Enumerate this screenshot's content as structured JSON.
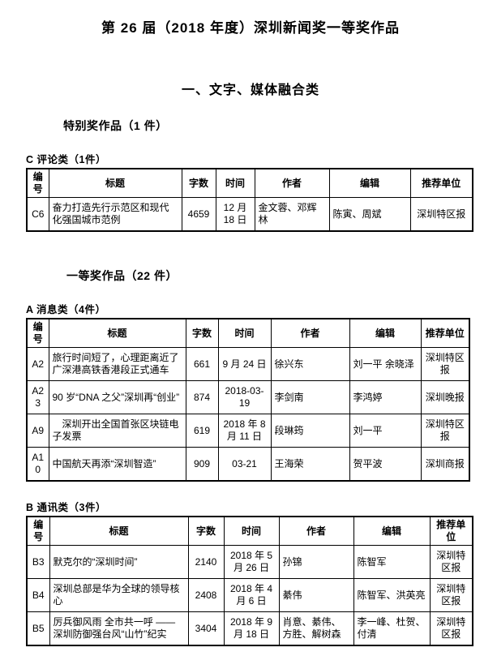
{
  "doc": {
    "main_title": "第 26 届（2018 年度）深圳新闻奖一等奖作品",
    "category_title": "一、文字、媒体融合类"
  },
  "table_headers": [
    "编号",
    "标题",
    "字数",
    "时间",
    "作者",
    "编辑",
    "推荐单位"
  ],
  "special_section": {
    "heading": "特别奖作品（1 件）",
    "table_c": {
      "caption": "C 评论类（1件）",
      "rows": [
        {
          "no": "C6",
          "title": "奋力打造先行示范区和现代化强国城市范例",
          "words": "4659",
          "time": "12 月 18 日",
          "authors": "金文蓉、邓辉林",
          "editors": "陈寅、周斌",
          "org": "深圳特区报"
        }
      ]
    }
  },
  "first_prize_section": {
    "heading": "一等奖作品（22 件）",
    "table_a": {
      "caption": "A 消息类（4件）",
      "rows": [
        {
          "no": "A2",
          "title": "旅行时间短了，心理距离近了 广深港高铁香港段正式通车",
          "words": "661",
          "time": "9 月 24 日",
          "authors": "徐兴东",
          "editors": "刘一平 余晓泽",
          "org": "深圳特区报"
        },
        {
          "no": "A23",
          "title": "90 岁“DNA 之父”深圳再“创业”",
          "words": "874",
          "time": "2018-03-19",
          "authors": "李剑南",
          "editors": "李鸿婷",
          "org": "深圳晚报"
        },
        {
          "no": "A9",
          "title": "　深圳开出全国首张区块链电子发票",
          "words": "619",
          "time": "2018 年 8 月 11 日",
          "authors": "段琳筠",
          "editors": "刘一平",
          "org": "深圳特区报"
        },
        {
          "no": "A10",
          "title": "中国航天再添“深圳智造”",
          "words": "909",
          "time": "03-21",
          "authors": "王海荣",
          "editors": "贺平波",
          "org": "深圳商报"
        }
      ]
    },
    "table_b": {
      "caption": "B 通讯类（3件）",
      "rows": [
        {
          "no": "B3",
          "title": "默克尔的“深圳时间”",
          "words": "2140",
          "time": "2018 年 5 月 26 日",
          "authors": "孙锦",
          "editors": "陈智军",
          "org": "深圳特区报"
        },
        {
          "no": "B4",
          "title": "深圳总部是华为全球的领导核心",
          "words": "2408",
          "time": "2018 年 4 月 6 日",
          "authors": "綦伟",
          "editors": "陈智军、洪英亮",
          "org": "深圳特区报"
        },
        {
          "no": "B5",
          "title": "厉兵御风雨 全市共一呼 ——深圳防御强台风“山竹”纪实",
          "words": "3404",
          "time": "2018 年 9 月 18 日",
          "authors": "肖意、綦伟、方胜、解树森",
          "editors": "李一峰、杜贺、付清",
          "org": "深圳特区报"
        }
      ]
    }
  }
}
